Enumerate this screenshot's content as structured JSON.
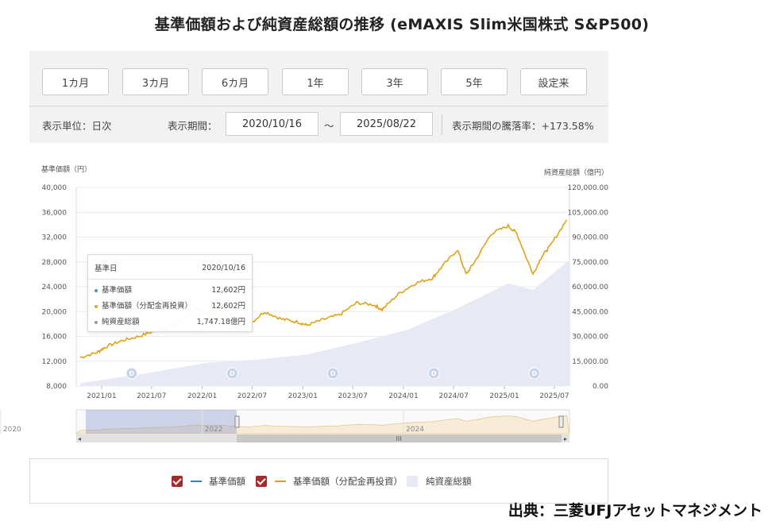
{
  "header": {
    "title": "基準価額および純資産総額の推移 (eMAXIS Slim米国株式 S&P500)"
  },
  "controls": {
    "period_buttons": [
      "1カ月",
      "3カ月",
      "6カ月",
      "1年",
      "3年",
      "5年",
      "設定来"
    ],
    "unit_label": "表示単位：日次",
    "period_label": "表示期間：",
    "start_date": "2020/10/16",
    "tilde": "～",
    "end_date": "2025/08/22",
    "change_label": "表示期間の騰落率：+173.58%"
  },
  "tooltip": {
    "date_label": "基準日",
    "date_value": "2020/10/16",
    "rows": [
      {
        "label": "基準価額",
        "value": "12,602円",
        "color": "#4a90d9"
      },
      {
        "label": "基準価額（分配金再投資）",
        "value": "12,602円",
        "color": "#e0a21b"
      },
      {
        "label": "純資産総額",
        "value": "1,747.18億円",
        "color": "#999999"
      }
    ]
  },
  "legend": {
    "items": [
      "基準価額",
      "基準価額（分配金再投資）",
      "純資産総額"
    ],
    "colors": {
      "nav": "#2f7fd6",
      "nav_reinvest": "#e0a21b",
      "assets": "#e7eaf4",
      "checkbox": "#a52b2b"
    }
  },
  "source": "出典：三菱UFJアセットマネジメント",
  "chart_data": {
    "type": "line",
    "ylabel": "基準価額（円）",
    "y2label": "純資産総額（億円）",
    "ylim": [
      8000,
      40000
    ],
    "y2lim": [
      0,
      120000
    ],
    "y_ticks": [
      "40,000",
      "36,000",
      "32,000",
      "28,000",
      "24,000",
      "20,000",
      "16,000",
      "12,000",
      "8,000"
    ],
    "y2_ticks": [
      "120,000.00",
      "105,000.00",
      "90,000.00",
      "75,000.00",
      "60,000.00",
      "45,000.00",
      "30,000.00",
      "15,000.00",
      "0.00"
    ],
    "x_ticks": [
      "2021/01",
      "2021/07",
      "2022/01",
      "2022/07",
      "2023/01",
      "2023/07",
      "2024/01",
      "2024/07",
      "2025/01",
      "2025/07"
    ],
    "navigator_labels": [
      "2020",
      "2022",
      "2024"
    ],
    "dividend_marker": "D",
    "series": [
      {
        "name": "基準価額（分配金再投資）",
        "x": [
          "2020/10",
          "2020/12",
          "2021/01",
          "2021/03",
          "2021/05",
          "2021/07",
          "2021/09",
          "2021/11",
          "2021/12",
          "2022/01",
          "2022/03",
          "2022/05",
          "2022/06",
          "2022/08",
          "2022/10",
          "2022/12",
          "2023/01",
          "2023/03",
          "2023/05",
          "2023/07",
          "2023/09",
          "2023/10",
          "2023/12",
          "2024/02",
          "2024/04",
          "2024/05",
          "2024/07",
          "2024/08",
          "2024/09",
          "2024/11",
          "2025/01",
          "2025/02",
          "2025/04",
          "2025/05",
          "2025/06",
          "2025/08"
        ],
        "values": [
          12602,
          13400,
          14300,
          15300,
          16000,
          16900,
          17700,
          19600,
          20600,
          19800,
          20100,
          18400,
          17700,
          20000,
          18800,
          18300,
          17800,
          18700,
          19500,
          21400,
          21100,
          20300,
          22900,
          24600,
          25400,
          27000,
          30000,
          26000,
          28000,
          32600,
          33800,
          32600,
          26000,
          28800,
          30500,
          34800
        ]
      },
      {
        "name": "純資産総額",
        "x": [
          "2020/10",
          "2021/01",
          "2021/07",
          "2022/01",
          "2022/07",
          "2023/01",
          "2023/07",
          "2024/01",
          "2024/07",
          "2025/01",
          "2025/04",
          "2025/08"
        ],
        "values": [
          1747,
          4000,
          8500,
          14000,
          16000,
          19000,
          26000,
          34000,
          47000,
          62000,
          58000,
          75000
        ]
      }
    ]
  }
}
